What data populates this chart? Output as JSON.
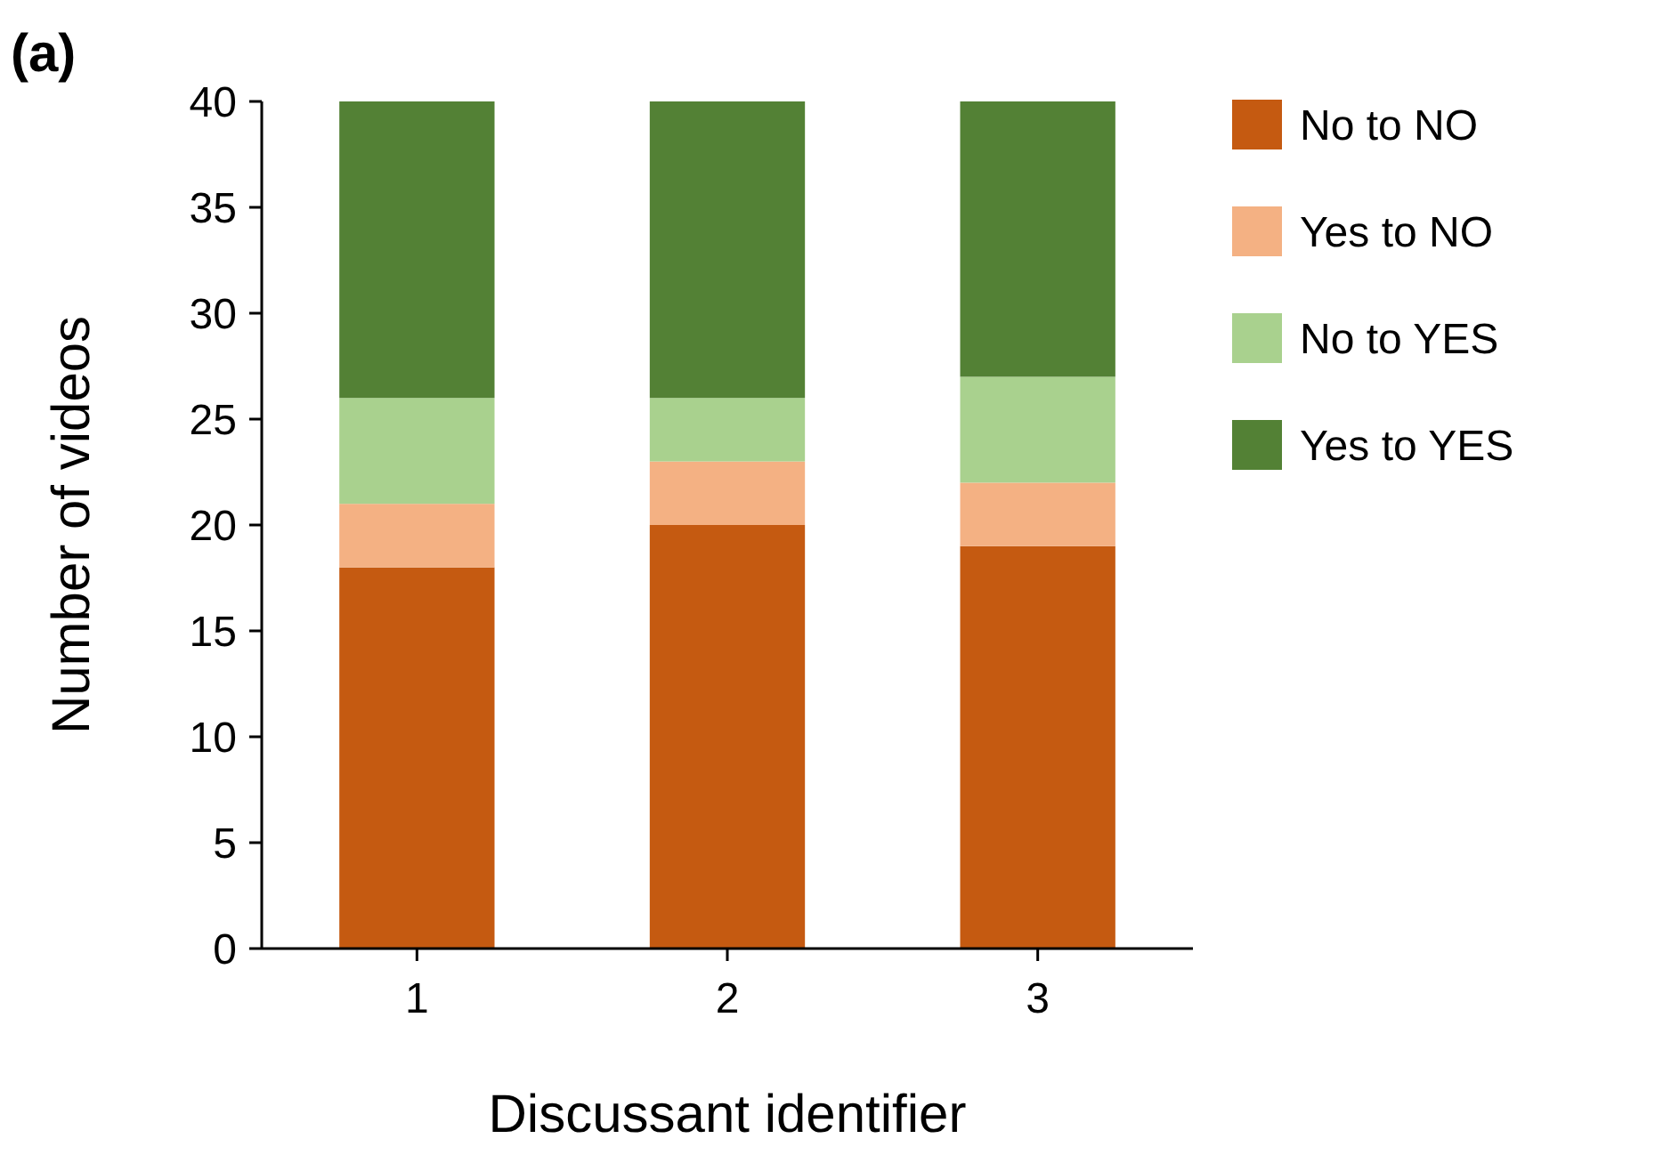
{
  "chart_data": {
    "type": "bar",
    "stacked": true,
    "xlabel": "Discussant identifier",
    "ylabel": "Number of videos",
    "annotations": [
      "(a)"
    ],
    "categories": [
      "1",
      "2",
      "3"
    ],
    "series": [
      {
        "name": "No to NO",
        "color": "#c55a11",
        "values": [
          18,
          20,
          19
        ]
      },
      {
        "name": "Yes to NO",
        "color": "#f4b183",
        "values": [
          3,
          3,
          3
        ]
      },
      {
        "name": "No to YES",
        "color": "#a9d18e",
        "values": [
          5,
          3,
          5
        ]
      },
      {
        "name": "Yes to YES",
        "color": "#538135",
        "values": [
          14,
          14,
          13
        ]
      }
    ],
    "ylim": [
      0,
      40
    ],
    "yticks": [
      0,
      5,
      10,
      15,
      20,
      25,
      30,
      35,
      40
    ],
    "grid": false,
    "legend": "right"
  }
}
